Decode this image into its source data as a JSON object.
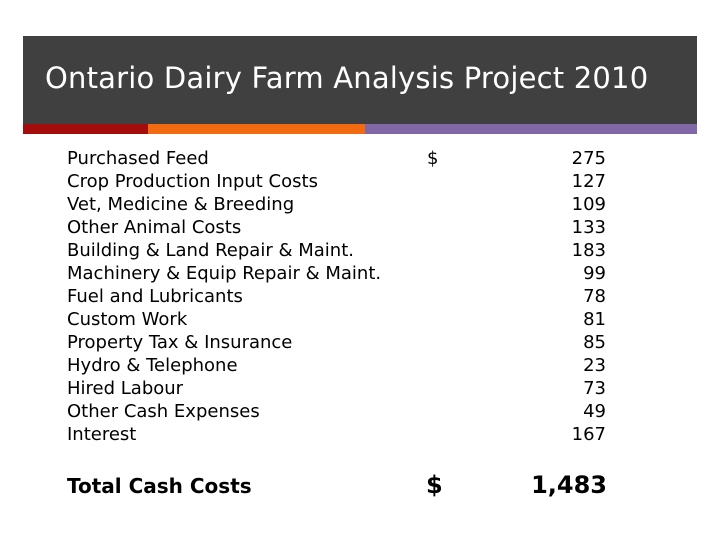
{
  "title": "Ontario Dairy Farm Analysis Project 2010",
  "colors": {
    "title_bar": "#404040",
    "accent_red": "#a50d0d",
    "accent_orange": "#f26b10",
    "accent_purple": "#8068a6"
  },
  "currency_symbol": "$",
  "items": [
    {
      "label": "Purchased Feed",
      "currency": "$",
      "value": "275"
    },
    {
      "label": "Crop Production Input Costs",
      "currency": "",
      "value": "127"
    },
    {
      "label": "Vet, Medicine & Breeding",
      "currency": "",
      "value": "109"
    },
    {
      "label": "Other Animal Costs",
      "currency": "",
      "value": "133"
    },
    {
      "label": "Building & Land Repair & Maint.",
      "currency": "",
      "value": "183"
    },
    {
      "label": "Machinery & Equip Repair & Maint.",
      "currency": "",
      "value": "99"
    },
    {
      "label": "Fuel and Lubricants",
      "currency": "",
      "value": "78"
    },
    {
      "label": "Custom Work",
      "currency": "",
      "value": "81"
    },
    {
      "label": "Property Tax & Insurance",
      "currency": "",
      "value": "85"
    },
    {
      "label": "Hydro & Telephone",
      "currency": "",
      "value": "23"
    },
    {
      "label": "Hired Labour",
      "currency": "",
      "value": "73"
    },
    {
      "label": "Other Cash Expenses",
      "currency": "",
      "value": "49"
    },
    {
      "label": "Interest",
      "currency": "",
      "value": "167"
    }
  ],
  "total": {
    "label": "Total Cash Costs",
    "currency": "$",
    "value": "1,483"
  }
}
